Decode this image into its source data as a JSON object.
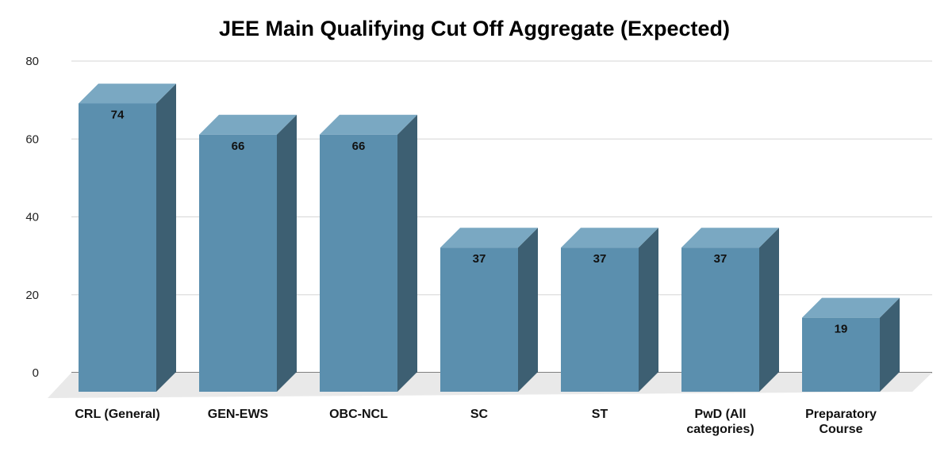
{
  "chart_data": {
    "type": "bar",
    "title": "JEE Main Qualifying Cut Off Aggregate (Expected)",
    "categories": [
      "CRL (General)",
      "GEN-EWS",
      "OBC-NCL",
      "SC",
      "ST",
      "PwD (All categories)",
      "Preparatory Course"
    ],
    "category_lines": [
      [
        "CRL (General)"
      ],
      [
        "GEN-EWS"
      ],
      [
        "OBC-NCL"
      ],
      [
        "SC"
      ],
      [
        "ST"
      ],
      [
        "PwD (All",
        "categories)"
      ],
      [
        "Preparatory",
        "Course"
      ]
    ],
    "values": [
      74,
      66,
      66,
      37,
      37,
      37,
      19
    ],
    "value_labels": [
      "74",
      "66",
      "66",
      "37",
      "37",
      "37",
      "19"
    ],
    "y_ticks": [
      "0",
      "20",
      "40",
      "60",
      "80"
    ],
    "ylim": [
      0,
      80
    ],
    "grid": true,
    "legend": "none",
    "style": "3d-column",
    "colors": {
      "front": "#5b8fae",
      "top": "#7aa8c2",
      "side": "#3d5f72",
      "floor": "#e9e9e9",
      "grid": "#d6d6d6",
      "axis": "#333333"
    }
  }
}
